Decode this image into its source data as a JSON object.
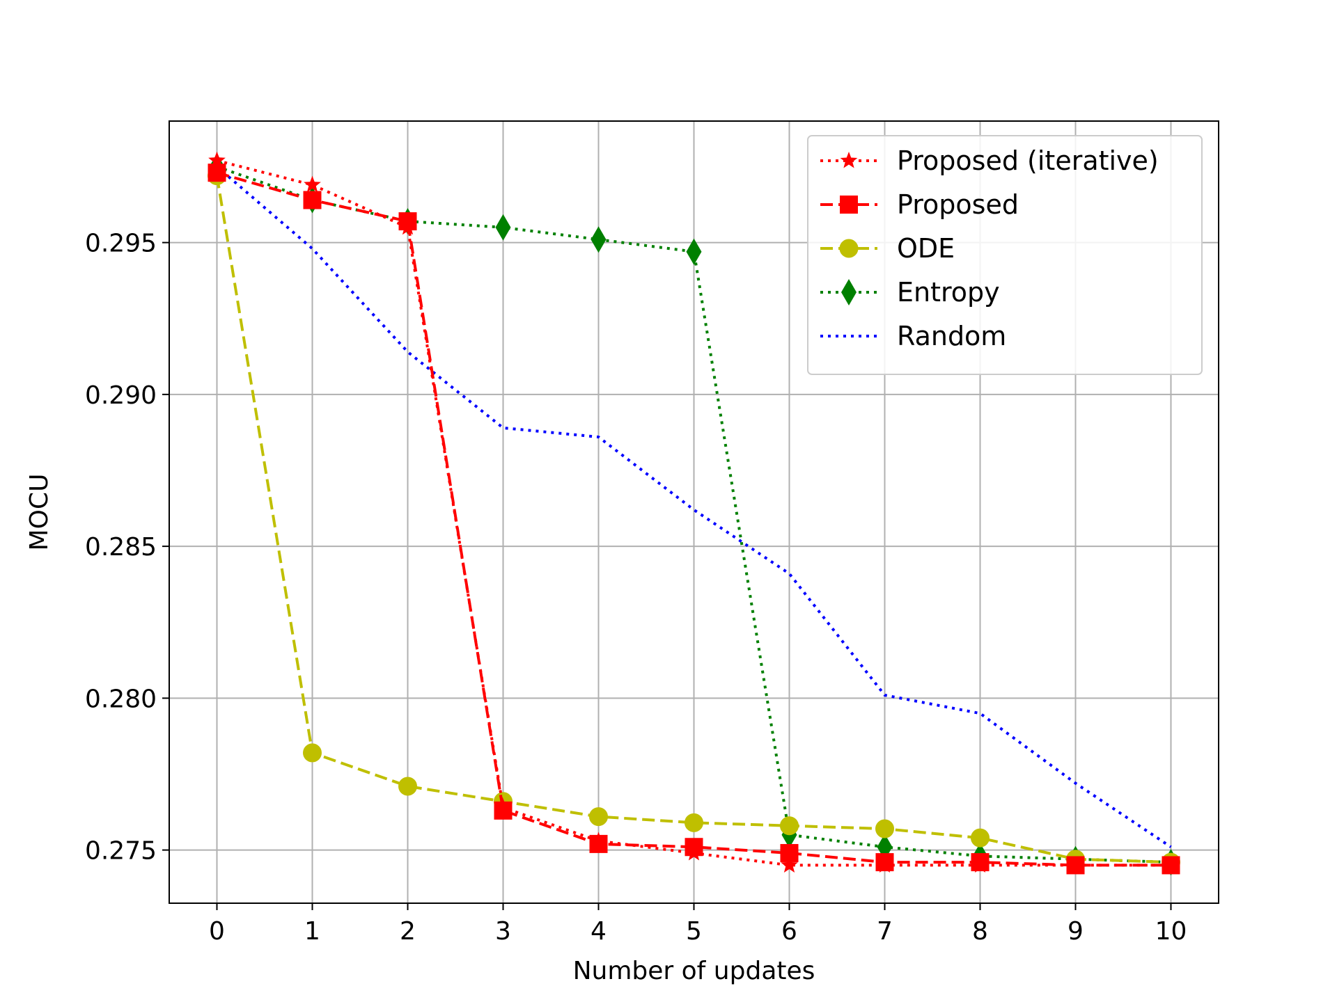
{
  "chart_data": {
    "type": "line",
    "title": "",
    "xlabel": "Number of updates",
    "ylabel": "MOCU",
    "x": [
      0,
      1,
      2,
      3,
      4,
      5,
      6,
      7,
      8,
      9,
      10
    ],
    "xlim": [
      -0.5,
      10.5
    ],
    "ylim": [
      0.27325,
      0.299
    ],
    "xticks": [
      "0",
      "1",
      "2",
      "3",
      "4",
      "5",
      "6",
      "7",
      "8",
      "9",
      "10"
    ],
    "yticks": [
      "0.275",
      "0.280",
      "0.285",
      "0.290",
      "0.295"
    ],
    "ytick_values": [
      0.275,
      0.28,
      0.285,
      0.29,
      0.295
    ],
    "grid": true,
    "legend_position": "top-right",
    "series": [
      {
        "name": "Proposed (iterative)",
        "color": "#ff0000",
        "linestyle": "dotted",
        "marker": "star",
        "values": [
          0.2977,
          0.2969,
          0.2955,
          0.2764,
          0.2753,
          0.2749,
          0.2745,
          0.2745,
          0.2745,
          0.2745,
          0.2745
        ]
      },
      {
        "name": "Proposed",
        "color": "#ff0000",
        "linestyle": "dashed",
        "marker": "square",
        "values": [
          0.2973,
          0.2964,
          0.2957,
          0.2763,
          0.2752,
          0.2751,
          0.2749,
          0.2746,
          0.2746,
          0.2745,
          0.2745
        ]
      },
      {
        "name": "ODE",
        "color": "#bfbf00",
        "linestyle": "dashed",
        "marker": "circle",
        "values": [
          0.2972,
          0.2782,
          0.2771,
          0.2766,
          0.2761,
          0.2759,
          0.2758,
          0.2757,
          0.2754,
          0.2747,
          0.2746
        ]
      },
      {
        "name": "Entropy",
        "color": "#008000",
        "linestyle": "dotted",
        "marker": "diamond",
        "values": [
          0.2975,
          0.2964,
          0.2957,
          0.2955,
          0.2951,
          0.2947,
          0.2755,
          0.2751,
          0.2748,
          0.2747,
          0.2746
        ]
      },
      {
        "name": "Random",
        "color": "#0000ff",
        "linestyle": "dotted",
        "marker": "none",
        "values": [
          0.2975,
          0.2948,
          0.2914,
          0.2889,
          0.2886,
          0.2862,
          0.2841,
          0.2801,
          0.2795,
          0.2772,
          0.2751
        ]
      }
    ]
  }
}
